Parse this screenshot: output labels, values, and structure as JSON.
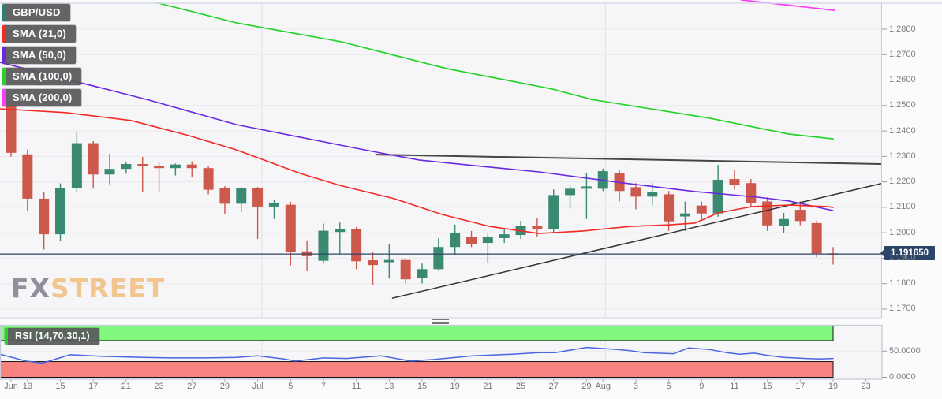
{
  "pair_label": "GBP/USD",
  "watermark": {
    "fx": "FX",
    "street": "STREET"
  },
  "legend": {
    "items": [
      {
        "label": "GBP/USD",
        "color": "#2b8176"
      },
      {
        "label": "SMA (21,0)",
        "color": "#f32a23"
      },
      {
        "label": "SMA (50,0)",
        "color": "#6a28e0"
      },
      {
        "label": "SMA (100,0)",
        "color": "#27d32a"
      },
      {
        "label": "SMA (200,0)",
        "color": "#fb3dfb"
      }
    ]
  },
  "chart_data": {
    "type": "candlestick",
    "title": "GBP/USD daily candlestick chart with SMA overlays and RSI sub-panel",
    "current_price": "1.191650",
    "price_axis_ticks": [
      "1.2800",
      "1.2700",
      "1.2600",
      "1.2500",
      "1.2400",
      "1.2300",
      "1.2200",
      "1.2100",
      "1.2000",
      "1.1900",
      "1.1800",
      "1.1700"
    ],
    "price_axis_range": [
      1.1653,
      1.2902
    ],
    "time_axis_ticks": [
      {
        "label": "Jun",
        "i": 0
      },
      {
        "label": "13",
        "i": 1
      },
      {
        "label": "15",
        "i": 3
      },
      {
        "label": "17",
        "i": 5
      },
      {
        "label": "21",
        "i": 7
      },
      {
        "label": "23",
        "i": 9
      },
      {
        "label": "27",
        "i": 11
      },
      {
        "label": "29",
        "i": 13
      },
      {
        "label": "Jul",
        "i": 15
      },
      {
        "label": "5",
        "i": 17
      },
      {
        "label": "7",
        "i": 19
      },
      {
        "label": "11",
        "i": 21
      },
      {
        "label": "13",
        "i": 23
      },
      {
        "label": "15",
        "i": 25
      },
      {
        "label": "19",
        "i": 27
      },
      {
        "label": "21",
        "i": 29
      },
      {
        "label": "25",
        "i": 31
      },
      {
        "label": "27",
        "i": 33
      },
      {
        "label": "29",
        "i": 35
      },
      {
        "label": "Aug",
        "i": 36
      },
      {
        "label": "3",
        "i": 38
      },
      {
        "label": "5",
        "i": 40
      },
      {
        "label": "9",
        "i": 42
      },
      {
        "label": "11",
        "i": 44
      },
      {
        "label": "15",
        "i": 46
      },
      {
        "label": "17",
        "i": 48
      },
      {
        "label": "19",
        "i": 50
      },
      {
        "label": "23",
        "i": 52
      }
    ],
    "candles": [
      {
        "d": "Jun 10",
        "o": 1.2498,
        "h": 1.2506,
        "l": 1.2299,
        "c": 1.2314
      },
      {
        "d": "Jun 13",
        "o": 1.2308,
        "h": 1.2327,
        "l": 1.2086,
        "c": 1.2134
      },
      {
        "d": "Jun 14",
        "o": 1.2134,
        "h": 1.2159,
        "l": 1.1934,
        "c": 1.1994
      },
      {
        "d": "Jun 15",
        "o": 1.1994,
        "h": 1.2194,
        "l": 1.1967,
        "c": 1.2174
      },
      {
        "d": "Jun 16",
        "o": 1.2174,
        "h": 1.2398,
        "l": 1.216,
        "c": 1.2352
      },
      {
        "d": "Jun 17",
        "o": 1.2352,
        "h": 1.236,
        "l": 1.2173,
        "c": 1.2229
      },
      {
        "d": "Jun 20",
        "o": 1.2229,
        "h": 1.2311,
        "l": 1.219,
        "c": 1.2251
      },
      {
        "d": "Jun 21",
        "o": 1.2251,
        "h": 1.2276,
        "l": 1.2232,
        "c": 1.227
      },
      {
        "d": "Jun 22",
        "o": 1.227,
        "h": 1.2298,
        "l": 1.216,
        "c": 1.2262
      },
      {
        "d": "Jun 23",
        "o": 1.2262,
        "h": 1.2276,
        "l": 1.2161,
        "c": 1.2254
      },
      {
        "d": "Jun 24",
        "o": 1.2254,
        "h": 1.2272,
        "l": 1.2225,
        "c": 1.2268
      },
      {
        "d": "Jun 27",
        "o": 1.2268,
        "h": 1.2281,
        "l": 1.222,
        "c": 1.2254
      },
      {
        "d": "Jun 28",
        "o": 1.2254,
        "h": 1.2262,
        "l": 1.2151,
        "c": 1.2169
      },
      {
        "d": "Jun 29",
        "o": 1.2176,
        "h": 1.2183,
        "l": 1.2074,
        "c": 1.2114
      },
      {
        "d": "Jun 30",
        "o": 1.2114,
        "h": 1.2179,
        "l": 1.208,
        "c": 1.2176
      },
      {
        "d": "Jul 1",
        "o": 1.2177,
        "h": 1.218,
        "l": 1.1976,
        "c": 1.2103
      },
      {
        "d": "Jul 4",
        "o": 1.2103,
        "h": 1.213,
        "l": 1.2054,
        "c": 1.2118
      },
      {
        "d": "Jul 5",
        "o": 1.211,
        "h": 1.2122,
        "l": 1.1871,
        "c": 1.1923
      },
      {
        "d": "Jul 6",
        "o": 1.1927,
        "h": 1.197,
        "l": 1.1849,
        "c": 1.1908
      },
      {
        "d": "Jul 7",
        "o": 1.189,
        "h": 1.2036,
        "l": 1.188,
        "c": 1.2008
      },
      {
        "d": "Jul 8",
        "o": 1.2003,
        "h": 1.204,
        "l": 1.1915,
        "c": 1.2013
      },
      {
        "d": "Jul 11",
        "o": 1.2013,
        "h": 1.2023,
        "l": 1.1857,
        "c": 1.1888
      },
      {
        "d": "Jul 12",
        "o": 1.1892,
        "h": 1.1923,
        "l": 1.1794,
        "c": 1.1873
      },
      {
        "d": "Jul 13",
        "o": 1.1884,
        "h": 1.1954,
        "l": 1.182,
        "c": 1.1893
      },
      {
        "d": "Jul 14",
        "o": 1.1893,
        "h": 1.1896,
        "l": 1.1801,
        "c": 1.1817
      },
      {
        "d": "Jul 15",
        "o": 1.1823,
        "h": 1.1879,
        "l": 1.1801,
        "c": 1.1857
      },
      {
        "d": "Jul 18",
        "o": 1.1857,
        "h": 1.1979,
        "l": 1.1851,
        "c": 1.1944
      },
      {
        "d": "Jul 19",
        "o": 1.1944,
        "h": 1.2032,
        "l": 1.1913,
        "c": 1.1998
      },
      {
        "d": "Jul 20",
        "o": 1.1985,
        "h": 1.2007,
        "l": 1.1944,
        "c": 1.1954
      },
      {
        "d": "Jul 21",
        "o": 1.196,
        "h": 1.1998,
        "l": 1.1882,
        "c": 1.1982
      },
      {
        "d": "Jul 22",
        "o": 1.1979,
        "h": 1.2016,
        "l": 1.196,
        "c": 1.1994
      },
      {
        "d": "Jul 25",
        "o": 1.1991,
        "h": 1.2047,
        "l": 1.1976,
        "c": 1.2028
      },
      {
        "d": "Jul 26",
        "o": 1.2028,
        "h": 1.2059,
        "l": 1.1985,
        "c": 1.2015
      },
      {
        "d": "Jul 27",
        "o": 1.2015,
        "h": 1.217,
        "l": 1.2,
        "c": 1.2148
      },
      {
        "d": "Jul 28",
        "o": 1.2148,
        "h": 1.2186,
        "l": 1.2095,
        "c": 1.2173
      },
      {
        "d": "Jul 29",
        "o": 1.2173,
        "h": 1.2236,
        "l": 1.2054,
        "c": 1.2182
      },
      {
        "d": "Aug 1",
        "o": 1.2173,
        "h": 1.2252,
        "l": 1.2164,
        "c": 1.2242
      },
      {
        "d": "Aug 2",
        "o": 1.2236,
        "h": 1.2248,
        "l": 1.2123,
        "c": 1.2164
      },
      {
        "d": "Aug 3",
        "o": 1.2179,
        "h": 1.2195,
        "l": 1.2092,
        "c": 1.2142
      },
      {
        "d": "Aug 4",
        "o": 1.2142,
        "h": 1.2195,
        "l": 1.2107,
        "c": 1.216
      },
      {
        "d": "Aug 5",
        "o": 1.2151,
        "h": 1.2164,
        "l": 1.2007,
        "c": 1.2045
      },
      {
        "d": "Aug 8",
        "o": 1.2064,
        "h": 1.2123,
        "l": 1.2007,
        "c": 1.2076
      },
      {
        "d": "Aug 9",
        "o": 1.2107,
        "h": 1.2123,
        "l": 1.205,
        "c": 1.2076
      },
      {
        "d": "Aug 10",
        "o": 1.2076,
        "h": 1.2267,
        "l": 1.2063,
        "c": 1.2208
      },
      {
        "d": "Aug 11",
        "o": 1.2211,
        "h": 1.2245,
        "l": 1.217,
        "c": 1.2189
      },
      {
        "d": "Aug 12",
        "o": 1.2195,
        "h": 1.2211,
        "l": 1.2101,
        "c": 1.2117
      },
      {
        "d": "Aug 15",
        "o": 1.2123,
        "h": 1.2139,
        "l": 1.2007,
        "c": 1.2029
      },
      {
        "d": "Aug 16",
        "o": 1.2026,
        "h": 1.2078,
        "l": 1.1998,
        "c": 1.2054
      },
      {
        "d": "Aug 17",
        "o": 1.209,
        "h": 1.2123,
        "l": 1.203,
        "c": 1.2046
      },
      {
        "d": "Aug 18",
        "o": 1.2038,
        "h": 1.2048,
        "l": 1.1903,
        "c": 1.1919
      },
      {
        "d": "Aug 19",
        "o": 1.1919,
        "h": 1.1944,
        "l": 1.1875,
        "c": 1.1917
      }
    ],
    "candle_colors": {
      "up": "#3a8a72",
      "down": "#cd584c"
    },
    "overlays": {
      "sma21": {
        "name": "SMA (21,0)",
        "color": "#f32a23",
        "points": [
          [
            -0.67,
            1.2487
          ],
          [
            3.3,
            1.2472
          ],
          [
            7.3,
            1.2441
          ],
          [
            10.8,
            1.2382
          ],
          [
            13.7,
            1.2326
          ],
          [
            17.6,
            1.2233
          ],
          [
            20,
            1.2186
          ],
          [
            23.3,
            1.2134
          ],
          [
            26.2,
            1.2072
          ],
          [
            29.1,
            1.2025
          ],
          [
            32.1,
            1.1997
          ],
          [
            34.8,
            1.2007
          ],
          [
            37.7,
            1.2025
          ],
          [
            40,
            1.2031
          ],
          [
            41.6,
            1.2038
          ],
          [
            43,
            1.2078
          ],
          [
            45.1,
            1.2103
          ],
          [
            47.3,
            1.2109
          ],
          [
            49.6,
            1.2103
          ],
          [
            50,
            1.21
          ]
        ]
      },
      "sma50": {
        "name": "SMA (50,0)",
        "color": "#6a28e0",
        "points": [
          [
            -0.67,
            1.267
          ],
          [
            8.4,
            1.2521
          ],
          [
            13.7,
            1.2425
          ],
          [
            19.5,
            1.2351
          ],
          [
            22.2,
            1.2317
          ],
          [
            24.8,
            1.2286
          ],
          [
            29.1,
            1.2258
          ],
          [
            32.1,
            1.2239
          ],
          [
            37.2,
            1.2196
          ],
          [
            41.6,
            1.2162
          ],
          [
            45.4,
            1.214
          ],
          [
            47.3,
            1.2125
          ],
          [
            50,
            1.2087
          ]
        ]
      },
      "sma100": {
        "name": "SMA (100,0)",
        "color": "#27d32a",
        "points": [
          [
            8.8,
            1.2905
          ],
          [
            13.7,
            1.2825
          ],
          [
            20.1,
            1.275
          ],
          [
            26.5,
            1.2645
          ],
          [
            32.9,
            1.2565
          ],
          [
            35.3,
            1.2524
          ],
          [
            42.5,
            1.245
          ],
          [
            47.3,
            1.2388
          ],
          [
            50,
            1.2369
          ]
        ]
      },
      "sma200": {
        "name": "SMA (200,0)",
        "color": "#fb3dfb",
        "points": [
          [
            44.4,
            1.2915
          ],
          [
            50.1,
            1.2874
          ]
        ]
      },
      "trendline_upper": {
        "color": "#454545",
        "width": 2,
        "points": [
          [
            22.2,
            1.2307
          ],
          [
            52.9,
            1.227
          ]
        ]
      },
      "trendline_lower": {
        "color": "#333333",
        "width": 1.5,
        "points": [
          [
            23.2,
            1.1743
          ],
          [
            52.9,
            1.2193
          ]
        ]
      },
      "support_line": {
        "color": "#2a4568",
        "price": 1.19165
      }
    },
    "rsi": {
      "label": "RSI (14,70,30,1)",
      "legend_color": "#27d32a",
      "upper_level": 70,
      "lower_level": 30,
      "band_colors": {
        "overbought": "#80f97e",
        "oversold": "#f88381"
      },
      "line_color": "#4a66e0",
      "axis_ticks": [
        {
          "label": "50.0000",
          "v": 50
        },
        {
          "label": "0.0000",
          "v": 0
        }
      ],
      "points": [
        [
          -0.67,
          44
        ],
        [
          0.9,
          31
        ],
        [
          1.9,
          27
        ],
        [
          3.6,
          43
        ],
        [
          5.6,
          40
        ],
        [
          8,
          38
        ],
        [
          9.7,
          37
        ],
        [
          11.8,
          37
        ],
        [
          13.7,
          38
        ],
        [
          15,
          41
        ],
        [
          16.6,
          35
        ],
        [
          17.3,
          31
        ],
        [
          19,
          37
        ],
        [
          20.4,
          36
        ],
        [
          22.5,
          41
        ],
        [
          24.3,
          31
        ],
        [
          25.7,
          34
        ],
        [
          28.1,
          41
        ],
        [
          30.5,
          44
        ],
        [
          32.1,
          47
        ],
        [
          33.1,
          47
        ],
        [
          35,
          57
        ],
        [
          36.9,
          53
        ],
        [
          37.6,
          51
        ],
        [
          38.5,
          47
        ],
        [
          40.3,
          45
        ],
        [
          41.2,
          56
        ],
        [
          42.5,
          53
        ],
        [
          43.5,
          47
        ],
        [
          44.3,
          44
        ],
        [
          45.2,
          46
        ],
        [
          46,
          42
        ],
        [
          47,
          38
        ],
        [
          48.3,
          36
        ],
        [
          49.2,
          35
        ],
        [
          50,
          36
        ]
      ]
    }
  }
}
